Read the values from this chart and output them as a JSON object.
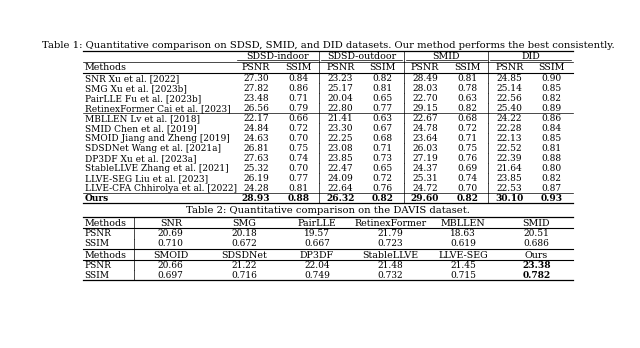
{
  "title1": "Table 1: Quantitative comparison on SDSD, SMID, and DID datasets. Our method performs the best consistently.",
  "title2": "Table 2: Quantitative comparison on the DAVIS dataset.",
  "table1": {
    "group_headers": [
      "SDSD-indoor",
      "SDSD-outdoor",
      "SMID",
      "DID"
    ],
    "separator_after_rows": [
      3,
      11
    ],
    "rows": [
      [
        "SNR Xu et al. [2022]",
        "27.30",
        "0.84",
        "23.23",
        "0.82",
        "28.49",
        "0.81",
        "24.85",
        "0.90"
      ],
      [
        "SMG Xu et al. [2023b]",
        "27.82",
        "0.86",
        "25.17",
        "0.81",
        "28.03",
        "0.78",
        "25.14",
        "0.85"
      ],
      [
        "PairLLE Fu et al. [2023b]",
        "23.48",
        "0.71",
        "20.04",
        "0.65",
        "22.70",
        "0.63",
        "22.56",
        "0.82"
      ],
      [
        "RetinexFormer Cai et al. [2023]",
        "26.56",
        "0.79",
        "22.80",
        "0.77",
        "29.15",
        "0.82",
        "25.40",
        "0.89"
      ],
      [
        "MBLLEN Lv et al. [2018]",
        "22.17",
        "0.66",
        "21.41",
        "0.63",
        "22.67",
        "0.68",
        "24.22",
        "0.86"
      ],
      [
        "SMID Chen et al. [2019]",
        "24.84",
        "0.72",
        "23.30",
        "0.67",
        "24.78",
        "0.72",
        "22.28",
        "0.84"
      ],
      [
        "SMOID Jiang and Zheng [2019]",
        "24.63",
        "0.70",
        "22.25",
        "0.68",
        "23.64",
        "0.71",
        "22.13",
        "0.85"
      ],
      [
        "SDSDNet Wang et al. [2021a]",
        "26.81",
        "0.75",
        "23.08",
        "0.71",
        "26.03",
        "0.75",
        "22.52",
        "0.81"
      ],
      [
        "DP3DF Xu et al. [2023a]",
        "27.63",
        "0.74",
        "23.85",
        "0.73",
        "27.19",
        "0.76",
        "22.39",
        "0.88"
      ],
      [
        "StableLLVE Zhang et al. [2021]",
        "25.32",
        "0.70",
        "22.47",
        "0.65",
        "24.37",
        "0.69",
        "21.64",
        "0.80"
      ],
      [
        "LLVE-SEG Liu et al. [2023]",
        "26.19",
        "0.77",
        "24.09",
        "0.72",
        "25.31",
        "0.74",
        "23.85",
        "0.82"
      ],
      [
        "LLVE-CFA Chhirolya et al. [2022]",
        "24.28",
        "0.81",
        "22.64",
        "0.76",
        "24.72",
        "0.70",
        "22.53",
        "0.87"
      ],
      [
        "Ours",
        "28.93",
        "0.88",
        "26.32",
        "0.82",
        "29.60",
        "0.82",
        "30.10",
        "0.93"
      ]
    ],
    "bold_row": 12
  },
  "table2_top": {
    "col_headers": [
      "Methods",
      "SNR",
      "SMG",
      "PairLLE",
      "RetinexFormer",
      "MBLLEN",
      "SMID"
    ],
    "rows": [
      [
        "PSNR",
        "20.69",
        "20.18",
        "19.57",
        "21.79",
        "18.63",
        "20.51"
      ],
      [
        "SSIM",
        "0.710",
        "0.672",
        "0.667",
        "0.723",
        "0.619",
        "0.686"
      ]
    ]
  },
  "table2_bot": {
    "col_headers": [
      "Methods",
      "SMOID",
      "SDSDNet",
      "DP3DF",
      "StableLLVE",
      "LLVE-SEG",
      "Ours"
    ],
    "rows": [
      [
        "PSNR",
        "20.66",
        "21.22",
        "22.04",
        "21.48",
        "21.45",
        "23.38"
      ],
      [
        "SSIM",
        "0.697",
        "0.716",
        "0.749",
        "0.732",
        "0.715",
        "0.782"
      ]
    ],
    "bold_col": 6
  },
  "bg_color": "#ffffff",
  "font_size_title": 7.2,
  "font_size_cell": 6.5,
  "font_size_header": 6.8
}
